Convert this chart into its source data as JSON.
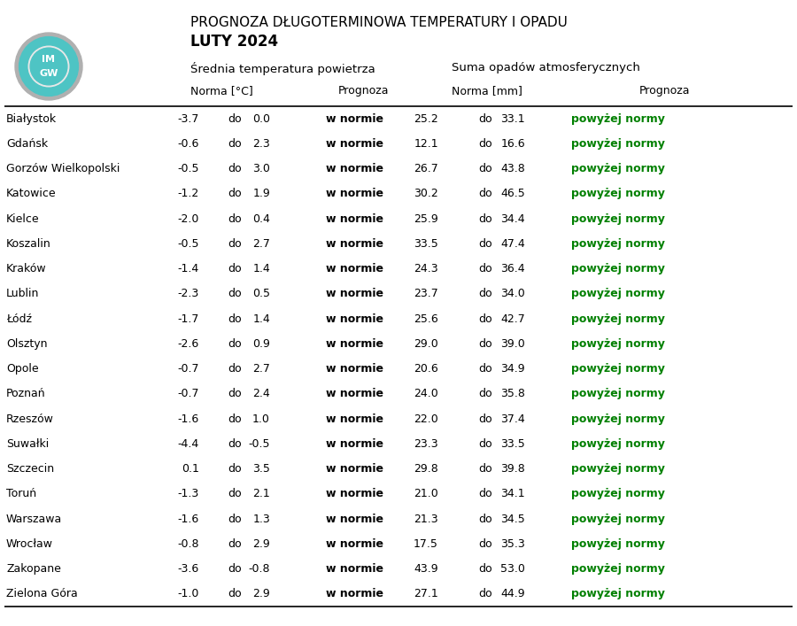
{
  "title_line1": "PROGNOZA DŁUGOTERMINOWA TEMPERATURY I OPADU",
  "title_line2": "LUTY 2024",
  "header1": "Średnia temperatura powietrza",
  "header2": "Suma opadów atmosferycznych",
  "subheader_norma_temp": "Norma [°C]",
  "subheader_prognoza": "Prognoza",
  "subheader_norma_mm": "Norma [mm]",
  "subheader_prognoza2": "Prognoza",
  "cities": [
    "Białystok",
    "Gdańsk",
    "Gorzów Wielkopolski",
    "Katowice",
    "Kielce",
    "Koszalin",
    "Kraków",
    "Lublin",
    "Łódź",
    "Olsztyn",
    "Opole",
    "Poznań",
    "Rzeszów",
    "Suwałki",
    "Szczecin",
    "Toruń",
    "Warszawa",
    "Wrocław",
    "Zakopane",
    "Zielona Góra"
  ],
  "temp_min": [
    -3.7,
    -0.6,
    -0.5,
    -1.2,
    -2.0,
    -0.5,
    -1.4,
    -2.3,
    -1.7,
    -2.6,
    -0.7,
    -0.7,
    -1.6,
    -4.4,
    0.1,
    -1.3,
    -1.6,
    -0.8,
    -3.6,
    -1.0
  ],
  "temp_max": [
    0.0,
    2.3,
    3.0,
    1.9,
    0.4,
    2.7,
    1.4,
    0.5,
    1.4,
    0.9,
    2.7,
    2.4,
    1.0,
    -0.5,
    3.5,
    2.1,
    1.3,
    2.9,
    -0.8,
    2.9
  ],
  "temp_prognoza": [
    "w normie",
    "w normie",
    "w normie",
    "w normie",
    "w normie",
    "w normie",
    "w normie",
    "w normie",
    "w normie",
    "w normie",
    "w normie",
    "w normie",
    "w normie",
    "w normie",
    "w normie",
    "w normie",
    "w normie",
    "w normie",
    "w normie",
    "w normie"
  ],
  "rain_min": [
    25.2,
    12.1,
    26.7,
    30.2,
    25.9,
    33.5,
    24.3,
    23.7,
    25.6,
    29.0,
    20.6,
    24.0,
    22.0,
    23.3,
    29.8,
    21.0,
    21.3,
    17.5,
    43.9,
    27.1
  ],
  "rain_max": [
    33.1,
    16.6,
    43.8,
    46.5,
    34.4,
    47.4,
    36.4,
    34.0,
    42.7,
    39.0,
    34.9,
    35.8,
    37.4,
    33.5,
    39.8,
    34.1,
    34.5,
    35.3,
    53.0,
    44.9
  ],
  "rain_prognoza": [
    "powyżej normy",
    "powyżej normy",
    "powyżej normy",
    "powyżej normy",
    "powyżej normy",
    "powyżej normy",
    "powyżej normy",
    "powyżej normy",
    "powyżej normy",
    "powyżej normy",
    "powyżej normy",
    "powyżej normy",
    "powyżej normy",
    "powyżej normy",
    "powyżej normy",
    "powyżej normy",
    "powyżej normy",
    "powyżej normy",
    "powyżej normy",
    "powyżej normy"
  ],
  "bg_color": "#ffffff",
  "text_color": "#000000",
  "green_color": "#008000",
  "line_color": "#000000",
  "logo_outer_color": "#a0a0a0",
  "logo_mid_color": "#5ecece",
  "logo_white_color": "#ffffff",
  "logo_text_color": "#ffffff"
}
